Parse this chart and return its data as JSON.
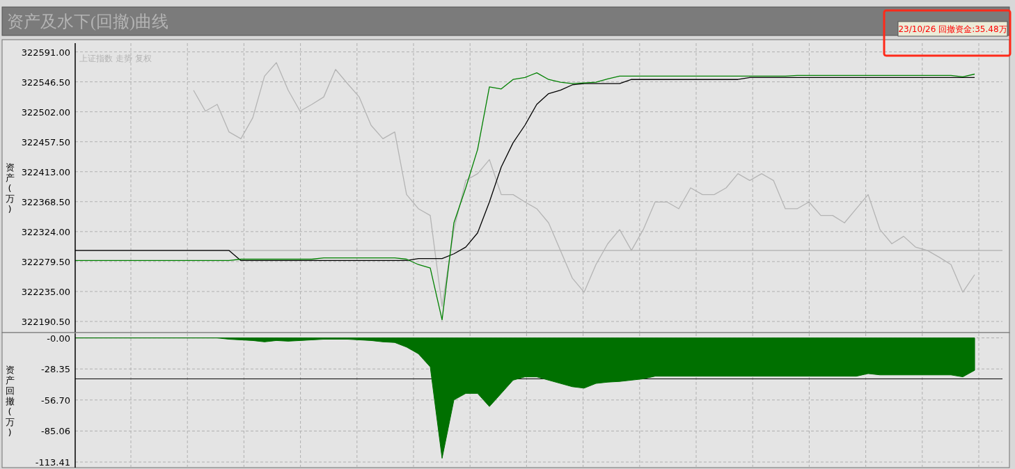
{
  "chart_data": [
    {
      "type": "line",
      "title": "资产及水下(回撤)曲线",
      "ylabel": "资产(万)",
      "annotations": [
        "23/10/26 回撤资金:35.48万"
      ],
      "legend": "top left",
      "grid": true,
      "categories": [
        null,
        null,
        null,
        null,
        null,
        null,
        null,
        null,
        null,
        null,
        null,
        null,
        null,
        null,
        null,
        null,
        null,
        null,
        null,
        null,
        null,
        null,
        null,
        null,
        null,
        null,
        null,
        null,
        null,
        null,
        null,
        null,
        null,
        null,
        null,
        null,
        null,
        null,
        null,
        null,
        null,
        null,
        null,
        null,
        null,
        null,
        null,
        null,
        null,
        null,
        null,
        null,
        null,
        null,
        null,
        null,
        null,
        null,
        null,
        null,
        null,
        null,
        null,
        null,
        null,
        null,
        null,
        null,
        null,
        null,
        null,
        null,
        null,
        null,
        null,
        null,
        null
      ],
      "ylim": [
        322176,
        322604
      ],
      "yticks": [
        {
          "value": 322190.5,
          "label": "322190.50"
        },
        {
          "value": 322235,
          "label": "322235.00"
        },
        {
          "value": 322279.5,
          "label": "322279.50"
        },
        {
          "value": 322324,
          "label": "322324.00"
        },
        {
          "value": 322368.5,
          "label": "322368.50"
        },
        {
          "value": 322413,
          "label": "322413.00"
        },
        {
          "value": 322457.5,
          "label": "322457.50"
        },
        {
          "value": 322502,
          "label": "322502.00"
        },
        {
          "value": 322546.5,
          "label": "322546.50"
        },
        {
          "value": 322591,
          "label": "322591.00"
        }
      ],
      "ref_lines": [
        {
          "axis": "y",
          "value": 322296,
          "color": "#a0a0a0"
        }
      ],
      "series": [
        {
          "name": "上证指数 走势 复权",
          "color": "#b4b4b4",
          "values": [
            null,
            null,
            null,
            null,
            null,
            null,
            null,
            null,
            null,
            null,
            322534,
            322503,
            322513,
            322472,
            322462,
            322493,
            322555,
            322575,
            322534,
            322503,
            322513,
            322524,
            322565,
            322544,
            322524,
            322482,
            322462,
            322472,
            322379,
            322358,
            322348,
            322213,
            322327,
            322400,
            322410,
            322431,
            322379,
            322379,
            322368,
            322358,
            322337,
            322296,
            322255,
            322234,
            322275,
            322306,
            322327,
            322296,
            322327,
            322368,
            322368,
            322358,
            322389,
            322379,
            322379,
            322389,
            322410,
            322400,
            322410,
            322400,
            322358,
            322358,
            322368,
            322348,
            322348,
            322337,
            322358,
            322379,
            322327,
            322306,
            322317,
            322301,
            322296,
            322286,
            322275,
            322234,
            322260
          ]
        },
        {
          "color": "#000000",
          "values": [
            322296,
            322296,
            322296,
            322296,
            322296,
            322296,
            322296,
            322296,
            322296,
            322296,
            322296,
            322296,
            322296,
            322296,
            322281,
            322281,
            322281,
            322281,
            322281,
            322281,
            322281,
            322281,
            322281,
            322281,
            322281,
            322281,
            322281,
            322281,
            322281,
            322284,
            322284,
            322284,
            322291,
            322301,
            322322,
            322368,
            322420,
            322456,
            322482,
            322513,
            322529,
            322534,
            322542,
            322544,
            322544,
            322544,
            322544,
            322550,
            322550,
            322550,
            322550,
            322550,
            322550,
            322550,
            322550,
            322550,
            322550,
            322553,
            322553,
            322553,
            322553,
            322553,
            322553,
            322553,
            322553,
            322553,
            322553,
            322553,
            322553,
            322553,
            322553,
            322553,
            322553,
            322553,
            322553,
            322553,
            322553
          ]
        },
        {
          "color": "#008000",
          "values": [
            322281,
            322281,
            322281,
            322281,
            322281,
            322281,
            322281,
            322281,
            322281,
            322281,
            322281,
            322281,
            322281,
            322281,
            322283,
            322283,
            322283,
            322283,
            322283,
            322283,
            322283,
            322285,
            322285,
            322285,
            322285,
            322285,
            322285,
            322285,
            322283,
            322275,
            322270,
            322193,
            322337,
            322389,
            322446,
            322539,
            322536,
            322550,
            322553,
            322560,
            322550,
            322546,
            322544,
            322545,
            322546,
            322551,
            322555,
            322555,
            322555,
            322555,
            322555,
            322555,
            322555,
            322555,
            322555,
            322555,
            322555,
            322555,
            322555,
            322555,
            322555,
            322556,
            322556,
            322556,
            322556,
            322556,
            322556,
            322556,
            322556,
            322556,
            322556,
            322556,
            322556,
            322556,
            322556,
            322554,
            322558
          ]
        }
      ]
    },
    {
      "type": "area",
      "ylabel": "资产回撤(万)",
      "grid": true,
      "categories": [
        null,
        null,
        null,
        null,
        null,
        null,
        null,
        null,
        null,
        null,
        null,
        null,
        null,
        null,
        null,
        null,
        null,
        null,
        null,
        null,
        null,
        null,
        null,
        null,
        null,
        null,
        null,
        null,
        null,
        null,
        null,
        null,
        null,
        null,
        null,
        null,
        null,
        null,
        null,
        null,
        null,
        null,
        null,
        null,
        null,
        null,
        null,
        null,
        null,
        null,
        null,
        null,
        null,
        null,
        null,
        null,
        null,
        null,
        null,
        null,
        null,
        null,
        null,
        null,
        null,
        null,
        null,
        null,
        null,
        null,
        null,
        null,
        null,
        null,
        null,
        null,
        null
      ],
      "ylim": [
        -113.41,
        4.2
      ],
      "yticks": [
        {
          "value": 0,
          "label": "-0.00"
        },
        -28.35,
        {
          "value": -56.7,
          "label": "-56.70"
        },
        -85.06,
        -113.41
      ],
      "ref_lines": [
        {
          "axis": "y",
          "value": -37.4,
          "color": "#000000"
        }
      ],
      "series": [
        {
          "color": "#007000",
          "values": [
            0,
            0,
            0,
            0,
            0,
            0,
            0,
            0,
            0,
            0,
            0,
            0,
            0,
            -1.2,
            -1.8,
            -2.4,
            -3.6,
            -2.4,
            -3.0,
            -2.4,
            -1.8,
            -1.2,
            -1.2,
            -1.2,
            -1.8,
            -2.4,
            -3.6,
            -4.2,
            -8.4,
            -14.5,
            -26.5,
            -110,
            -56.7,
            -50.7,
            -50.7,
            -62.7,
            -50.7,
            -38.6,
            -35.6,
            -35.6,
            -38.6,
            -41.6,
            -44.6,
            -45.9,
            -41.6,
            -40.4,
            -39.8,
            -38.6,
            -37.4,
            -35,
            -35,
            -35,
            -35,
            -35,
            -35,
            -35,
            -35,
            -35,
            -35,
            -35,
            -35,
            -35,
            -35,
            -35,
            -35,
            -35,
            -35,
            -32.6,
            -33.8,
            -33.8,
            -33.8,
            -33.8,
            -33.8,
            -33.8,
            -33.8,
            -35.6,
            -29.6
          ]
        }
      ]
    }
  ]
}
